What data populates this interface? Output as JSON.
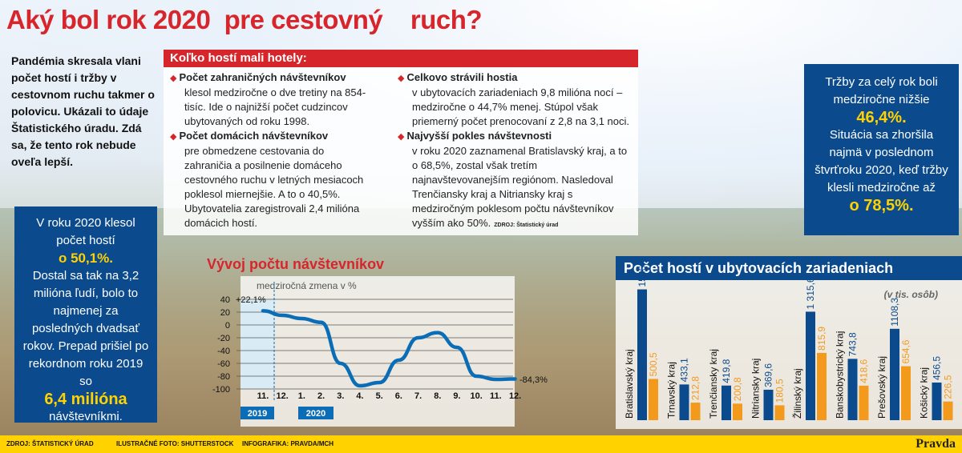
{
  "title": "Aký bol rok 2020  pre cestovný    ruch?",
  "intro": "Pandémia skresala vlani počet hostí i tržby v cestovnom ruchu takmer o polovicu. Ukázali to údaje Štatistického úradu. Zdá sa, že tento rok nebude oveľa lepší.",
  "left_box": {
    "text1": "V roku 2020 klesol počet hostí",
    "value1": "o 50,1%.",
    "text2": "Dostal sa tak na 3,2 milióna ľudí, bolo to najmenej za posledných dvadsať rokov. Prepad prišiel po rekordnom roku 2019 so",
    "value2": "6,4 milióna",
    "text3": "návštevníkmi."
  },
  "right_box": {
    "text1": "Tržby za celý rok boli medziročne nižšie",
    "value1": "46,4%.",
    "text2": "Situácia sa zhoršila najmä v poslednom štvrťroku 2020, keď tržby klesli medziročne až",
    "value2": "o 78,5%."
  },
  "panel": {
    "heading": "Koľko hostí mali hotely:",
    "items": [
      {
        "bold": "Počet zahraničných návštevníkov",
        "text": "klesol medziročne o dve tretiny na 854-tisíc. Ide o najnižší počet cudzincov ubytovaných od roku 1998."
      },
      {
        "bold": "Počet domácich návštevníkov",
        "text": "pre obmedzene cestovania do zahraničia a posilnenie domáceho cestovného ruchu v letných mesiacoch poklesol miernejšie. A to o 40,5%. Ubytovatelia zaregistrovali 2,4 milióna domácich hostí."
      },
      {
        "bold": "Celkovo strávili hostia",
        "text": "v ubytovacích zariadeniach 9,8 milióna nocí – medziročne o 44,7% menej. Stúpol však priemerný počet prenocovaní z 2,8 na 3,1 noci."
      },
      {
        "bold": "Najvyšší pokles návštevnosti",
        "text": "v roku 2020 zaznamenal Bratislavský kraj, a to o 68,5%, zostal však tretím najnavštevovanejším regiónom. Nasledoval Trenčiansky kraj a Nitriansky kraj s medziročným poklesom počtu návštevníkov vyšším ako 50%."
      }
    ],
    "source": "ZDROJ: Štatistický úrad"
  },
  "chart_data": [
    {
      "type": "line",
      "title": "Vývoj počtu návštevníkov",
      "ylabel": "medziročná zmena v %",
      "categories": [
        "11.",
        "12.",
        "1.",
        "2.",
        "3.",
        "4.",
        "5.",
        "6.",
        "7.",
        "8.",
        "9.",
        "10.",
        "11.",
        "12."
      ],
      "year_labels": [
        "2019",
        "2020"
      ],
      "values": [
        22.1,
        15,
        10,
        4,
        -60,
        -95,
        -90,
        -55,
        -20,
        -12,
        -35,
        -80,
        -85,
        -84.3
      ],
      "annotations": [
        "+22,1%",
        "-84,3%"
      ],
      "yticks": [
        "40",
        "20",
        "0",
        "-20",
        "-40",
        "-60",
        "-80",
        "-100"
      ],
      "ylim": [
        -100,
        40
      ],
      "grid": true,
      "color": "#0b6db6"
    },
    {
      "type": "bar",
      "title": "Počet hostí v ubytovacích zariadeniach",
      "unit": "(v tis. osôb)",
      "categories": [
        "Bratislavský kraj",
        "Trnavský kraj",
        "Trenčiansky kraj",
        "Nitriansky kraj",
        "Žilinský kraj",
        "Banskobystrický kraj",
        "Prešovský kraj",
        "Košický kraj"
      ],
      "series": [
        {
          "values": [
            1586.4,
            433.1,
            419.8,
            369.6,
            1315.6,
            743.8,
            1108.3,
            456.5
          ],
          "labels": [
            "1586,4",
            "433,1",
            "419,8",
            "369,6",
            "1 315,6",
            "743,8",
            "1108,3",
            "456,5"
          ],
          "color": "#0b4a8c"
        },
        {
          "values": [
            500.5,
            212.8,
            200.8,
            180.5,
            815.9,
            418.6,
            654.6,
            226.5
          ],
          "labels": [
            "500,5",
            "212,8",
            "200,8",
            "180,5",
            "815,9",
            "418,6",
            "654,6",
            "226,5"
          ],
          "color": "#f39a1d"
        }
      ]
    }
  ],
  "footer": {
    "source": "ZDROJ: ŠTATISTICKÝ ÚRAD",
    "photo": "ILUSTRAČNÉ FOTO: SHUTTERSTOCK",
    "infographic": "INFOGRAFIKA: PRAVDA/MCH",
    "brand": "Pravda"
  },
  "colors": {
    "red": "#d7262b",
    "blue": "#0b4a8c",
    "orange": "#f39a1d",
    "yellow": "#ffd200"
  }
}
